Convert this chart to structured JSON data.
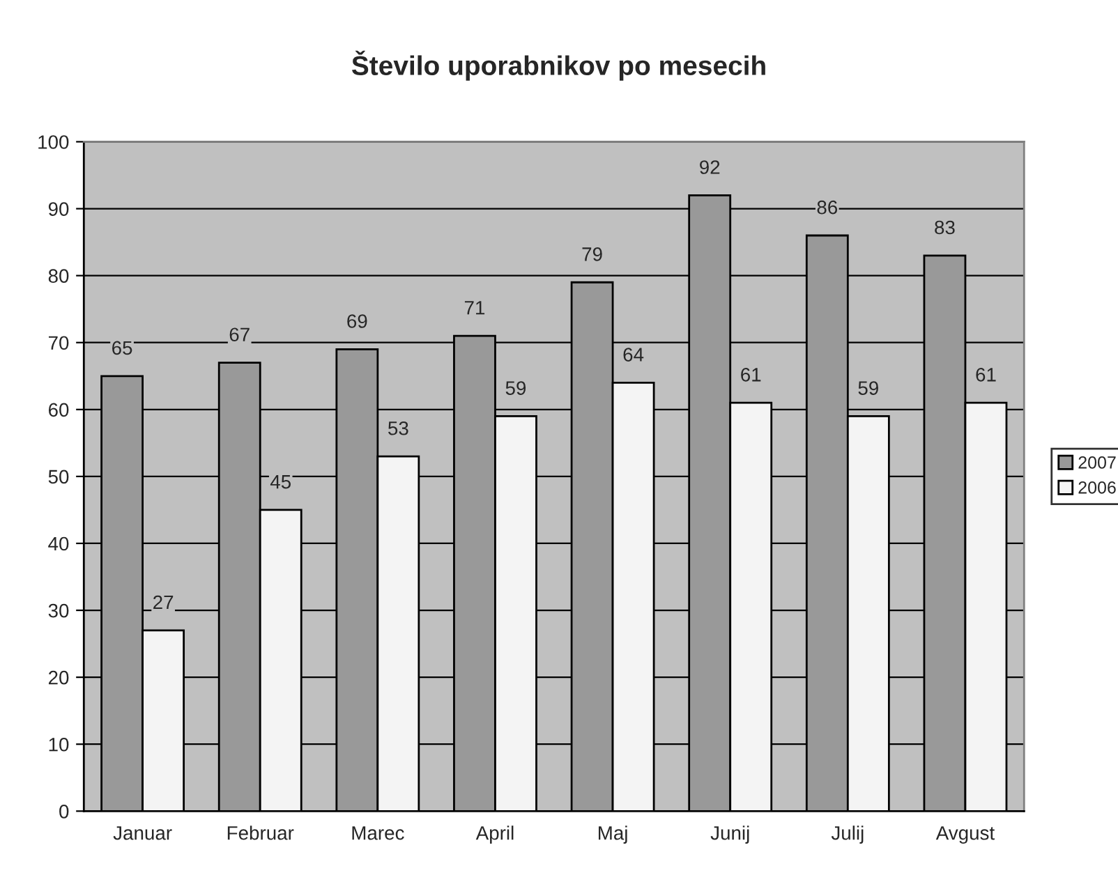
{
  "chart_data": {
    "type": "bar",
    "title": "Število uporabnikov po mesecih",
    "categories": [
      "Januar",
      "Februar",
      "Marec",
      "April",
      "Maj",
      "Junij",
      "Julij",
      "Avgust"
    ],
    "series": [
      {
        "name": "2007",
        "color": "#999999",
        "values": [
          65,
          67,
          69,
          71,
          79,
          92,
          86,
          83
        ]
      },
      {
        "name": "2006",
        "color": "#f4f4f4",
        "values": [
          27,
          45,
          53,
          59,
          64,
          61,
          59,
          61
        ]
      }
    ],
    "ylim": [
      0,
      100
    ],
    "yticks": [
      0,
      10,
      20,
      30,
      40,
      50,
      60,
      70,
      80,
      90,
      100
    ],
    "grid": "y",
    "legend": "right",
    "data_labels": true
  }
}
